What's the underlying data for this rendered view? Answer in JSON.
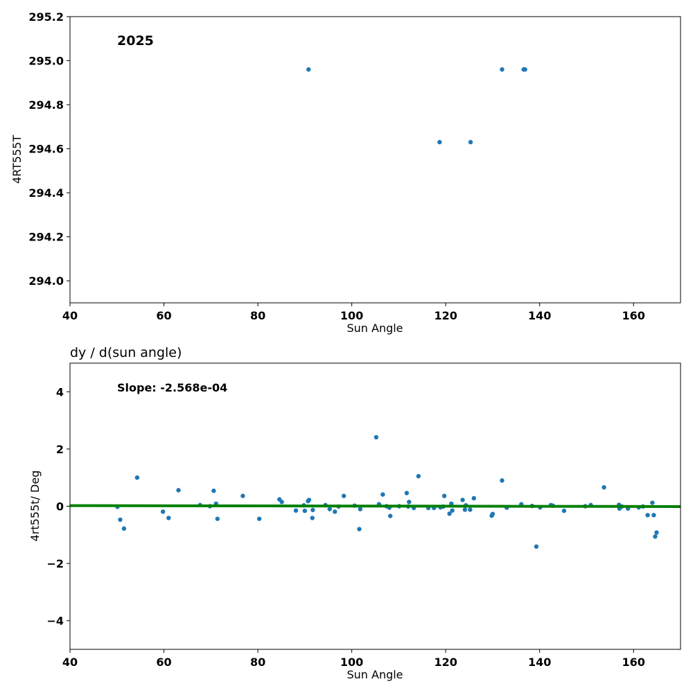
{
  "colors": {
    "points": "#1f77b4",
    "fit_line": "#008000",
    "frame": "#000000"
  },
  "chart_data": [
    {
      "type": "scatter",
      "title": "",
      "annotation": "2025",
      "xlabel": "Sun Angle",
      "ylabel": "4RT555T",
      "xlim": [
        40,
        170
      ],
      "ylim": [
        293.9,
        295.2
      ],
      "xticks": [
        40,
        60,
        80,
        100,
        120,
        140,
        160
      ],
      "yticks": [
        294.0,
        294.2,
        294.4,
        294.6,
        294.8,
        295.0,
        295.2
      ],
      "xtick_labels": [
        "40",
        "60",
        "80",
        "100",
        "120",
        "140",
        "160"
      ],
      "ytick_labels": [
        "294.0",
        "294.2",
        "294.4",
        "294.6",
        "294.8",
        "295.0",
        "295.2"
      ],
      "grid": false,
      "points": [
        {
          "x": 90.8,
          "y": 294.96
        },
        {
          "x": 118.7,
          "y": 294.63
        },
        {
          "x": 125.3,
          "y": 294.63
        },
        {
          "x": 132.0,
          "y": 294.96
        },
        {
          "x": 136.6,
          "y": 294.96
        },
        {
          "x": 136.9,
          "y": 294.96
        }
      ]
    },
    {
      "type": "scatter",
      "title": "dy / d(sun angle)",
      "annotation": "Slope: -2.568e-04",
      "xlabel": "Sun Angle",
      "ylabel": "4rt555t/ Deg",
      "xlim": [
        40,
        170
      ],
      "ylim": [
        -5,
        5
      ],
      "xticks": [
        40,
        60,
        80,
        100,
        120,
        140,
        160
      ],
      "yticks": [
        -4,
        -2,
        0,
        2,
        4
      ],
      "xtick_labels": [
        "40",
        "60",
        "80",
        "100",
        "120",
        "140",
        "160"
      ],
      "ytick_labels": [
        "−4",
        "−2",
        "0",
        "2",
        "4"
      ],
      "grid": false,
      "fit_line": {
        "x": [
          40,
          170
        ],
        "y": [
          0.0224,
          -0.011
        ]
      },
      "points": [
        {
          "x": 50.1,
          "y": -0.02
        },
        {
          "x": 50.7,
          "y": -0.47
        },
        {
          "x": 51.5,
          "y": -0.78
        },
        {
          "x": 54.3,
          "y": 1.0
        },
        {
          "x": 59.8,
          "y": -0.19
        },
        {
          "x": 61.0,
          "y": -0.41
        },
        {
          "x": 63.1,
          "y": 0.56
        },
        {
          "x": 67.7,
          "y": 0.04
        },
        {
          "x": 69.8,
          "y": 0.0
        },
        {
          "x": 70.6,
          "y": 0.54
        },
        {
          "x": 71.1,
          "y": 0.09
        },
        {
          "x": 71.4,
          "y": -0.44
        },
        {
          "x": 76.8,
          "y": 0.36
        },
        {
          "x": 80.3,
          "y": -0.44
        },
        {
          "x": 84.6,
          "y": 0.24
        },
        {
          "x": 85.1,
          "y": 0.15
        },
        {
          "x": 88.1,
          "y": -0.15
        },
        {
          "x": 89.8,
          "y": 0.03
        },
        {
          "x": 90.0,
          "y": -0.16
        },
        {
          "x": 90.7,
          "y": 0.18
        },
        {
          "x": 90.9,
          "y": 0.22
        },
        {
          "x": 91.6,
          "y": -0.41
        },
        {
          "x": 91.7,
          "y": -0.13
        },
        {
          "x": 94.4,
          "y": 0.04
        },
        {
          "x": 95.3,
          "y": -0.1
        },
        {
          "x": 96.4,
          "y": -0.19
        },
        {
          "x": 97.2,
          "y": -0.01
        },
        {
          "x": 98.3,
          "y": 0.36
        },
        {
          "x": 100.6,
          "y": 0.02
        },
        {
          "x": 101.6,
          "y": -0.8
        },
        {
          "x": 101.8,
          "y": -0.1
        },
        {
          "x": 105.2,
          "y": 2.41
        },
        {
          "x": 105.8,
          "y": 0.07
        },
        {
          "x": 106.6,
          "y": 0.41
        },
        {
          "x": 107.4,
          "y": 0.0
        },
        {
          "x": 108.0,
          "y": -0.05
        },
        {
          "x": 108.2,
          "y": -0.34
        },
        {
          "x": 110.1,
          "y": 0.0
        },
        {
          "x": 111.7,
          "y": 0.46
        },
        {
          "x": 112.0,
          "y": -0.01
        },
        {
          "x": 112.2,
          "y": 0.15
        },
        {
          "x": 113.2,
          "y": -0.06
        },
        {
          "x": 114.2,
          "y": 1.05
        },
        {
          "x": 116.3,
          "y": -0.06
        },
        {
          "x": 117.5,
          "y": -0.06
        },
        {
          "x": 118.9,
          "y": -0.04
        },
        {
          "x": 119.7,
          "y": 0.36
        },
        {
          "x": 119.5,
          "y": -0.01
        },
        {
          "x": 120.8,
          "y": -0.26
        },
        {
          "x": 121.2,
          "y": 0.09
        },
        {
          "x": 121.4,
          "y": -0.15
        },
        {
          "x": 123.6,
          "y": 0.22
        },
        {
          "x": 124.1,
          "y": -0.12
        },
        {
          "x": 124.3,
          "y": 0.03
        },
        {
          "x": 125.2,
          "y": -0.12
        },
        {
          "x": 126.0,
          "y": 0.28
        },
        {
          "x": 129.8,
          "y": -0.33
        },
        {
          "x": 130.0,
          "y": -0.27
        },
        {
          "x": 132.0,
          "y": 0.9
        },
        {
          "x": 133.0,
          "y": -0.05
        },
        {
          "x": 136.1,
          "y": 0.07
        },
        {
          "x": 138.4,
          "y": 0.01
        },
        {
          "x": 139.3,
          "y": -1.41
        },
        {
          "x": 140.1,
          "y": -0.04
        },
        {
          "x": 142.4,
          "y": 0.04
        },
        {
          "x": 142.8,
          "y": 0.02
        },
        {
          "x": 145.2,
          "y": -0.16
        },
        {
          "x": 149.7,
          "y": 0.0
        },
        {
          "x": 150.9,
          "y": 0.04
        },
        {
          "x": 153.7,
          "y": 0.66
        },
        {
          "x": 156.9,
          "y": 0.05
        },
        {
          "x": 157.0,
          "y": -0.08
        },
        {
          "x": 157.5,
          "y": -0.01
        },
        {
          "x": 158.8,
          "y": -0.08
        },
        {
          "x": 161.1,
          "y": -0.04
        },
        {
          "x": 162.0,
          "y": -0.01
        },
        {
          "x": 163.0,
          "y": -0.31
        },
        {
          "x": 164.0,
          "y": 0.12
        },
        {
          "x": 164.3,
          "y": -0.31
        },
        {
          "x": 164.6,
          "y": -1.06
        },
        {
          "x": 164.9,
          "y": -0.92
        }
      ]
    }
  ]
}
